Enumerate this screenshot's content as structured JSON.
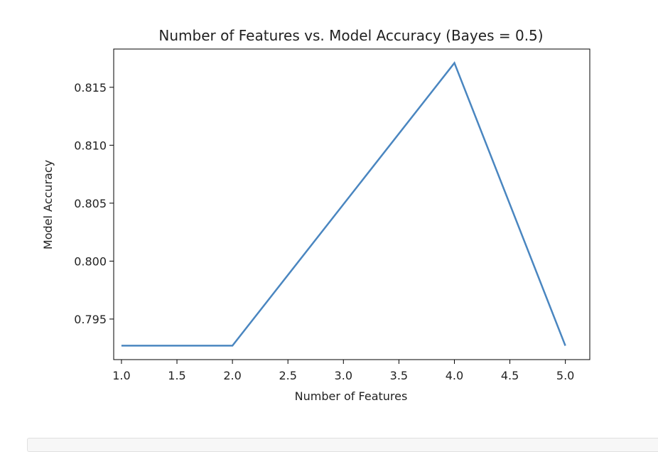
{
  "chart_data": {
    "type": "line",
    "title": "Number of Features vs. Model Accuracy (Bayes = 0.5)",
    "xlabel": "Number of Features",
    "ylabel": "Model Accuracy",
    "x": [
      1.0,
      2.0,
      4.0,
      5.0
    ],
    "series": [
      {
        "values": [
          0.7927,
          0.7927,
          0.8171,
          0.7927
        ],
        "color": "#4a86c0"
      }
    ],
    "xlim": [
      0.93,
      5.22
    ],
    "ylim": [
      0.7915,
      0.8183
    ],
    "xticks": [
      1.0,
      1.5,
      2.0,
      2.5,
      3.0,
      3.5,
      4.0,
      4.5,
      5.0
    ],
    "xtick_labels": [
      "1.0",
      "1.5",
      "2.0",
      "2.5",
      "3.0",
      "3.5",
      "4.0",
      "4.5",
      "5.0"
    ],
    "yticks": [
      0.795,
      0.8,
      0.805,
      0.81,
      0.815
    ],
    "ytick_labels": [
      "0.795",
      "0.800",
      "0.805",
      "0.810",
      "0.815"
    ],
    "grid": false,
    "legend": "none"
  }
}
